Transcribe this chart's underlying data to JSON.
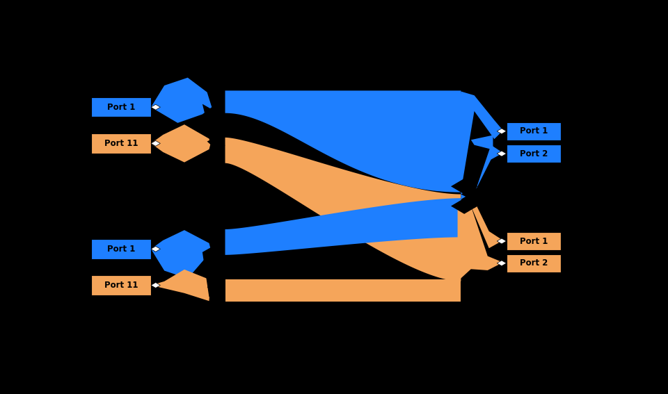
{
  "bg_color": "#000000",
  "blue_color": "#1e7fff",
  "orange_color": "#f5a55a",
  "fig_width": 9.6,
  "fig_height": 5.67,
  "dpi": 100,
  "labels": {
    "top_fi_port1": "Port 1",
    "top_fi_port11": "Port 11",
    "bot_fi_port1": "Port 1",
    "bot_fi_port11": "Port 11",
    "ha_port1": "Port 1",
    "ha_port2": "Port 2",
    "hb_port1": "Port 1",
    "hb_port2": "Port 2"
  }
}
